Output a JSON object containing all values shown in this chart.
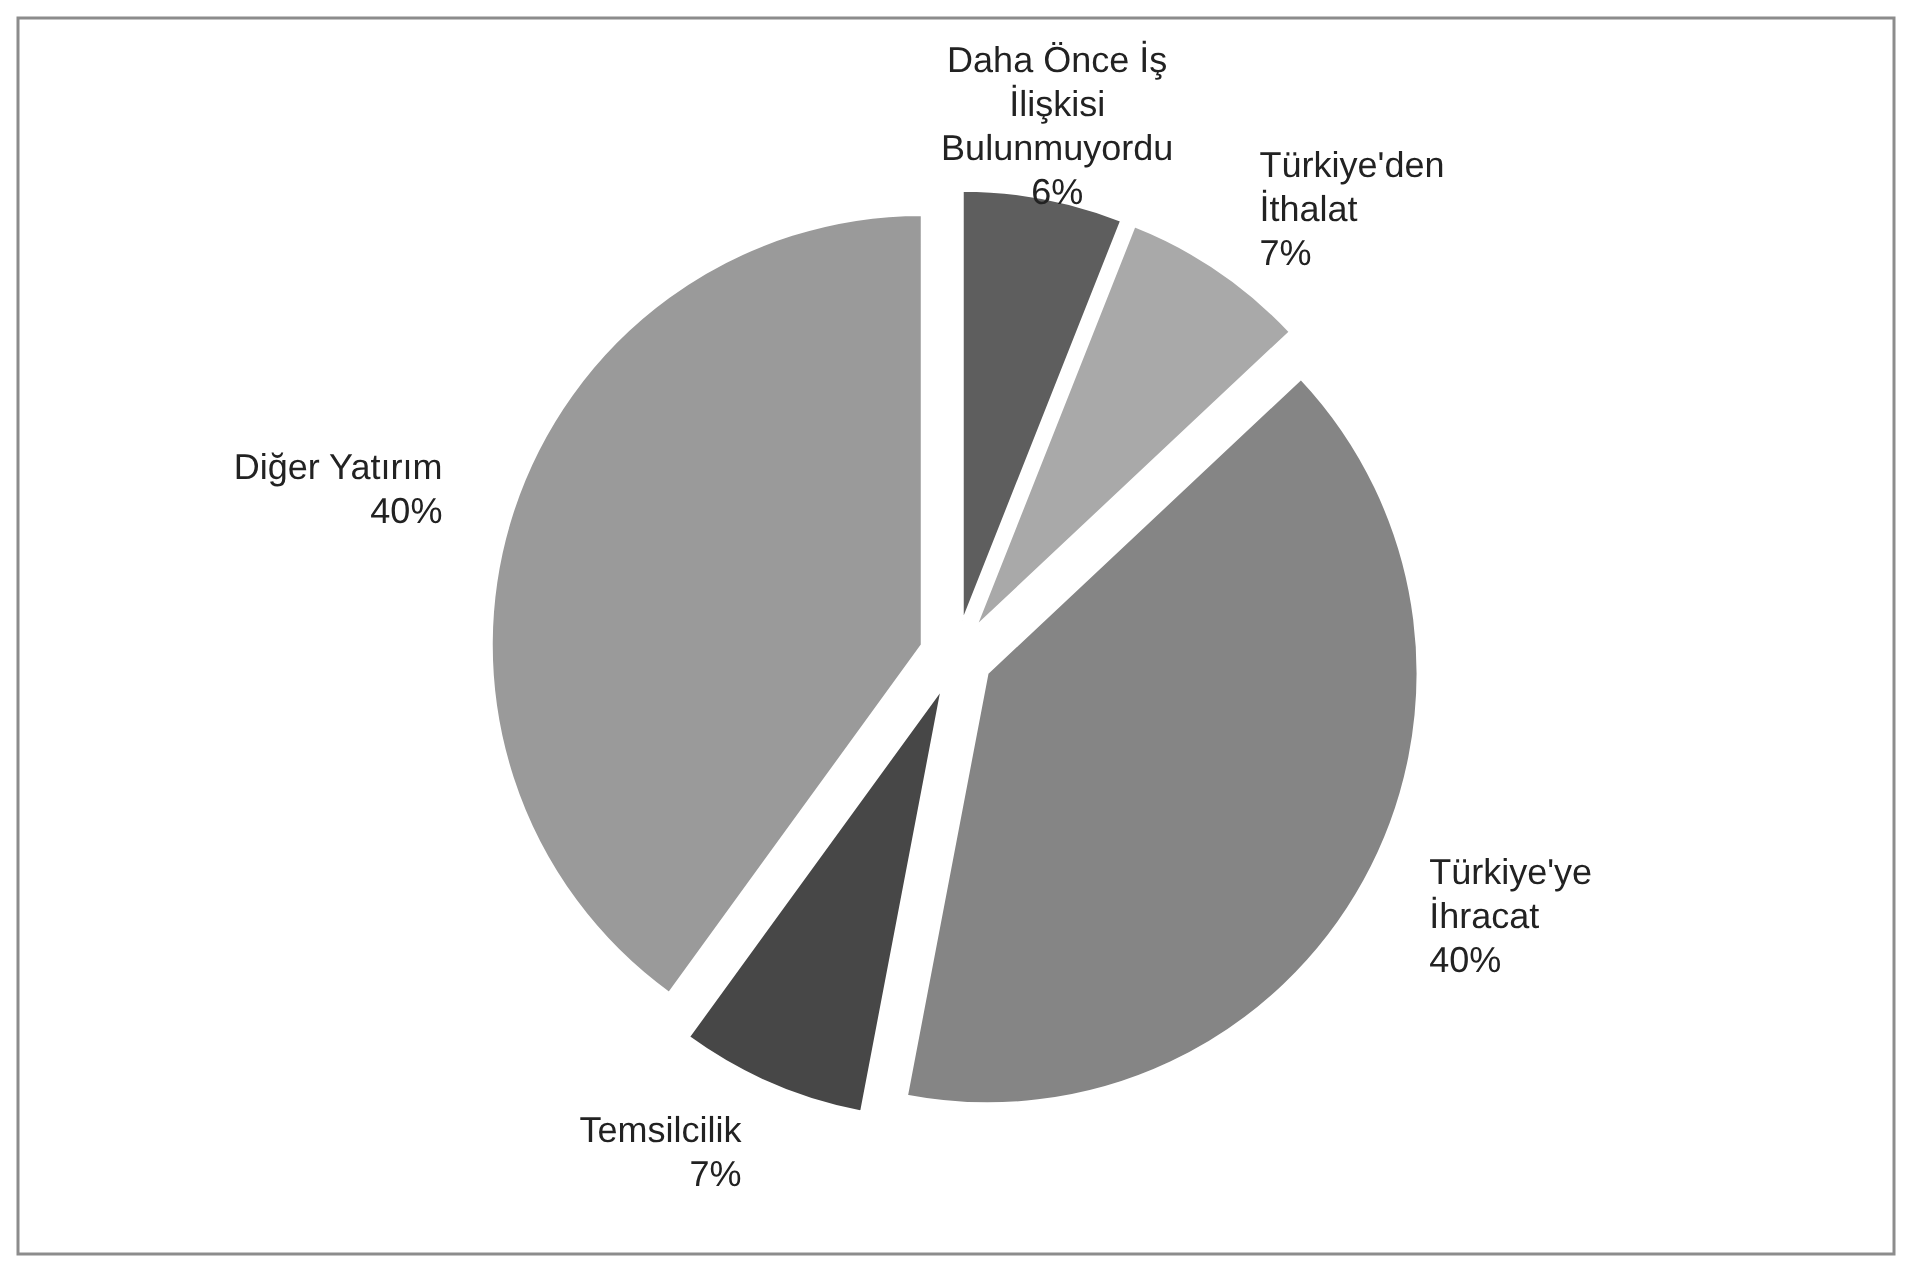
{
  "chart_data": {
    "type": "pie",
    "categories": [
      "Daha Önce İş İlişkisi Bulunmuyordu",
      "Türkiye'den İthalat",
      "Türkiye'ye İhracat",
      "Temsilcilik",
      "Diğer Yatırım"
    ],
    "values": [
      6,
      7,
      40,
      7,
      40
    ],
    "colors": [
      "#5e5e5e",
      "#a9a9a9",
      "#858585",
      "#474747",
      "#9a9a9a"
    ],
    "value_labels": [
      "6%",
      "7%",
      "40%",
      "7%",
      "40%"
    ]
  }
}
